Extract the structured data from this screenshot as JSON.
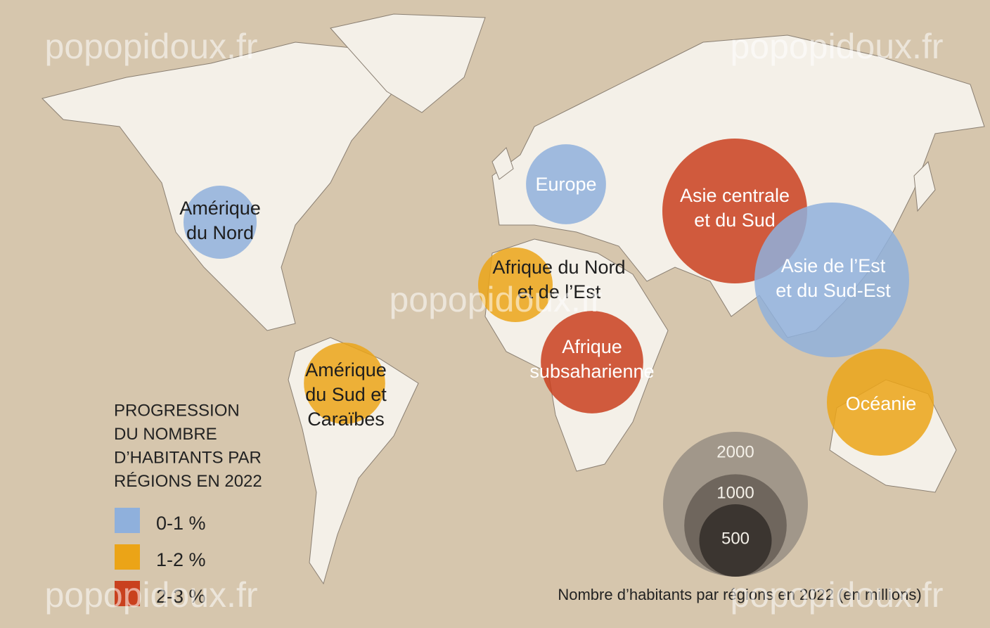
{
  "legend_title_lines": [
    "PROGRESSION",
    "DU NOMBRE",
    "D’HABITANTS PAR",
    "RÉGIONS EN 2022"
  ],
  "legend": [
    {
      "label": "0-1 %",
      "color": "#8fb0dc"
    },
    {
      "label": "1-2 %",
      "color": "#eba417"
    },
    {
      "label": "2-3 %",
      "color": "#c9401e"
    }
  ],
  "size_legend": {
    "values": [
      2000,
      1000,
      500
    ],
    "colors": [
      "#a1978a",
      "#6f665d",
      "#3b3530"
    ],
    "caption": "Nombre d’habitants par régions en 2022 (en millions)"
  },
  "regions": [
    {
      "label_lines": [
        "Amérique",
        "du Nord"
      ],
      "population": 510,
      "color": "#8fb0dc"
    },
    {
      "label_lines": [
        "Amérique",
        "du Sud et",
        "Caraïbes"
      ],
      "population": 630,
      "color": "#eba417"
    },
    {
      "label_lines": [
        "Europe"
      ],
      "population": 610,
      "color": "#8fb0dc"
    },
    {
      "label_lines": [
        "Afrique du Nord",
        "et de l’Est"
      ],
      "population": 530,
      "color": "#eba417"
    },
    {
      "label_lines": [
        "Afrique",
        "subsaharienne"
      ],
      "population": 1000,
      "color": "#c9401e"
    },
    {
      "label_lines": [
        "Asie centrale",
        "et du Sud"
      ],
      "population": 2000,
      "color": "#c9401e"
    },
    {
      "label_lines": [
        "Asie de l’Est",
        "et du Sud-Est"
      ],
      "population": 2280,
      "color": "#8fb0dc"
    },
    {
      "label_lines": [
        "Océanie"
      ],
      "population": 1090,
      "color": "#eba417"
    }
  ],
  "watermarks": [
    "popopidoux.fr",
    "popopidoux.fr",
    "popopidoux.fr",
    "popopidoux.fr",
    "popopidoux.fr"
  ]
}
